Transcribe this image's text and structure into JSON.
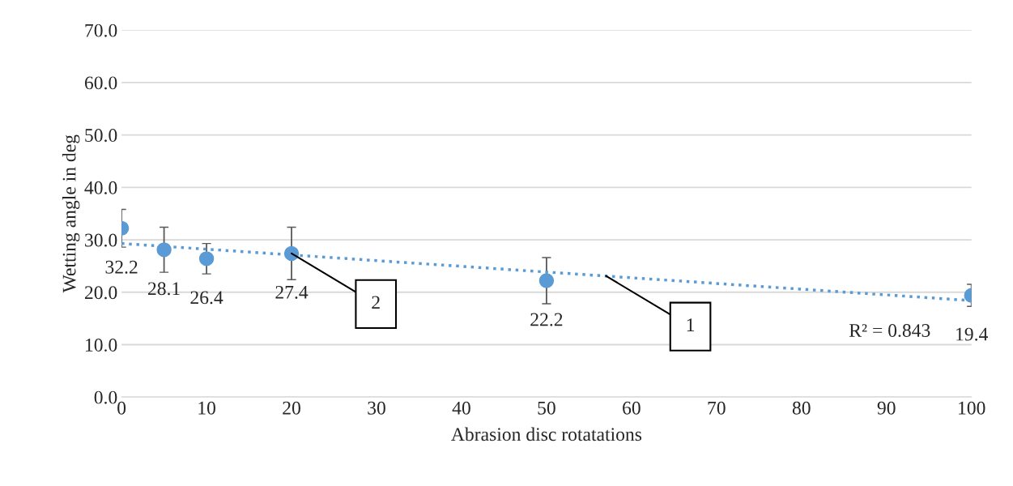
{
  "chart_data": {
    "type": "scatter",
    "xlabel": "Abrasion disc rotatations",
    "ylabel": "Wetting angle in deg",
    "x": [
      0,
      5,
      10,
      20,
      50,
      100
    ],
    "series": [
      {
        "color": "#5b9bd5",
        "values": [
          32.2,
          28.1,
          26.4,
          27.4,
          22.2,
          19.4
        ],
        "errors": [
          3.6,
          4.3,
          2.9,
          5.0,
          4.4,
          2.1
        ],
        "marker": "circle",
        "value_labels": [
          "32.2",
          "28.1",
          "26.4",
          "27.4",
          "22.2",
          "19.4"
        ]
      },
      {
        "type": "line",
        "x": [
          0,
          100
        ],
        "values": [
          29.3,
          18.4
        ],
        "color": "#5b9bd5",
        "line_style": "dotted",
        "marker": "none"
      }
    ],
    "xlim": [
      0,
      100
    ],
    "xticks": [
      0,
      10,
      20,
      30,
      40,
      50,
      60,
      70,
      80,
      90,
      100
    ],
    "ylim": [
      0,
      70
    ],
    "yticks": [
      {
        "value": 0,
        "label": "0.0"
      },
      {
        "value": 10,
        "label": "10.0"
      },
      {
        "value": 20,
        "label": "20.0"
      },
      {
        "value": 30,
        "label": "30.0"
      },
      {
        "value": 40,
        "label": "40.0"
      },
      {
        "value": 50,
        "label": "50.0"
      },
      {
        "value": 60,
        "label": "60.0"
      },
      {
        "value": 70,
        "label": "70.0"
      }
    ],
    "grid": "y",
    "legend": false,
    "annotations": [
      {
        "text": "2",
        "x": 20,
        "y": 27.4
      },
      {
        "text": "1",
        "x": 57,
        "y": 23.1
      },
      "R² = 0.843"
    ]
  }
}
